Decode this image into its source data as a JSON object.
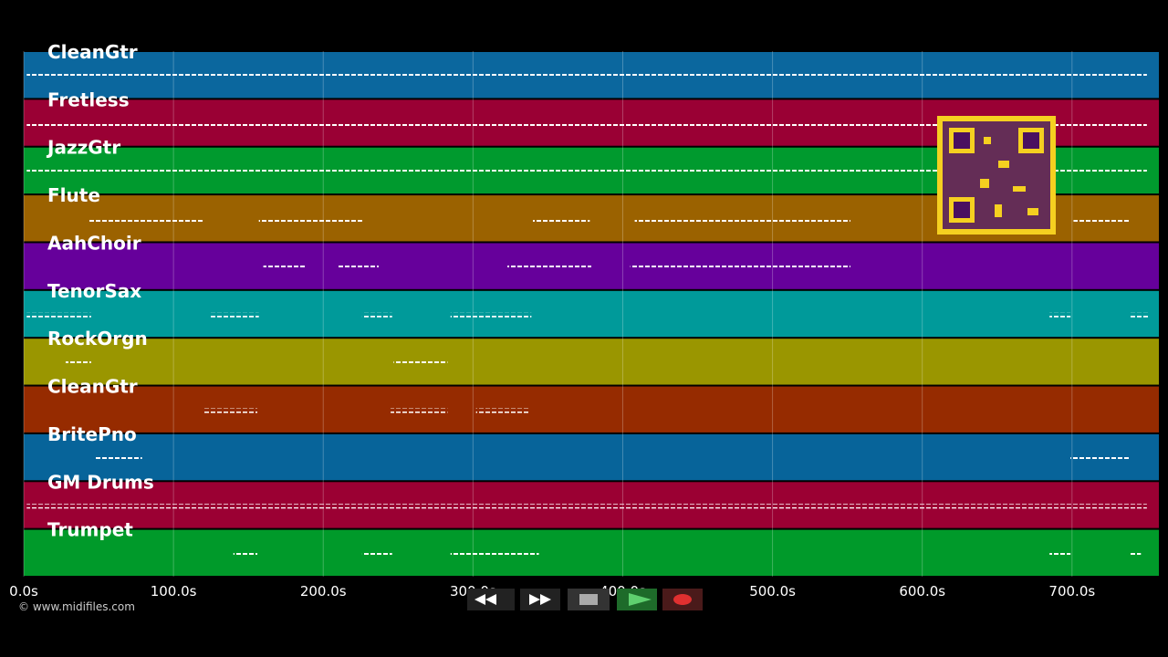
{
  "tracks": [
    {
      "name": "CleanGtr",
      "color": "#0b679e",
      "note_spans": [
        [
          2,
          750
        ]
      ]
    },
    {
      "name": "Fretless",
      "color": "#9a0034",
      "note_spans": [
        [
          2,
          750
        ]
      ]
    },
    {
      "name": "JazzGtr",
      "color": "#009a2e",
      "note_spans": [
        [
          2,
          750
        ]
      ]
    },
    {
      "name": "Flute",
      "color": "#9b6200",
      "note_spans": [
        [
          43,
          120
        ],
        [
          157,
          226
        ],
        [
          340,
          378
        ],
        [
          408,
          552
        ],
        [
          701,
          738
        ]
      ]
    },
    {
      "name": "AahChoir",
      "color": "#66009b",
      "note_spans": [
        [
          160,
          188
        ],
        [
          210,
          237
        ],
        [
          323,
          379
        ],
        [
          405,
          552
        ]
      ]
    },
    {
      "name": "TenorSax",
      "color": "#009a9a",
      "note_spans": [
        [
          2,
          45
        ],
        [
          124,
          157
        ],
        [
          226,
          246
        ],
        [
          285,
          339
        ],
        [
          685,
          699
        ],
        [
          738,
          751
        ]
      ]
    },
    {
      "name": "RockOrgn",
      "color": "#9a9600",
      "note_spans": [
        [
          28,
          45
        ],
        [
          247,
          283
        ]
      ]
    },
    {
      "name": "CleanGtr",
      "color": "#962b00",
      "note_spans": [
        [
          120,
          156
        ],
        [
          245,
          283
        ],
        [
          302,
          338
        ]
      ]
    },
    {
      "name": "BritePno",
      "color": "#07649a",
      "note_spans": [
        [
          47,
          79
        ],
        [
          699,
          738
        ]
      ]
    },
    {
      "name": "GM Drums",
      "color": "#9b0033",
      "note_spans": [
        [
          2,
          750
        ]
      ]
    },
    {
      "name": "Trumpet",
      "color": "#009a2a",
      "note_spans": [
        [
          140,
          156
        ],
        [
          226,
          246
        ],
        [
          285,
          344
        ],
        [
          685,
          699
        ],
        [
          738,
          746
        ]
      ]
    }
  ],
  "time_axis": {
    "xlim": [
      0,
      758
    ],
    "xticks": [
      {
        "value": 0,
        "label": "0.0s"
      },
      {
        "value": 100,
        "label": "100.0s"
      },
      {
        "value": 200,
        "label": "200.0s"
      },
      {
        "value": 300,
        "label": "300.0s"
      },
      {
        "value": 400,
        "label": "400.0s"
      },
      {
        "value": 500,
        "label": "500.0s"
      },
      {
        "value": 600,
        "label": "600.0s"
      },
      {
        "value": 700,
        "label": "700.0s"
      }
    ]
  },
  "footer": {
    "copyright": "© www.midifiles.com"
  }
}
